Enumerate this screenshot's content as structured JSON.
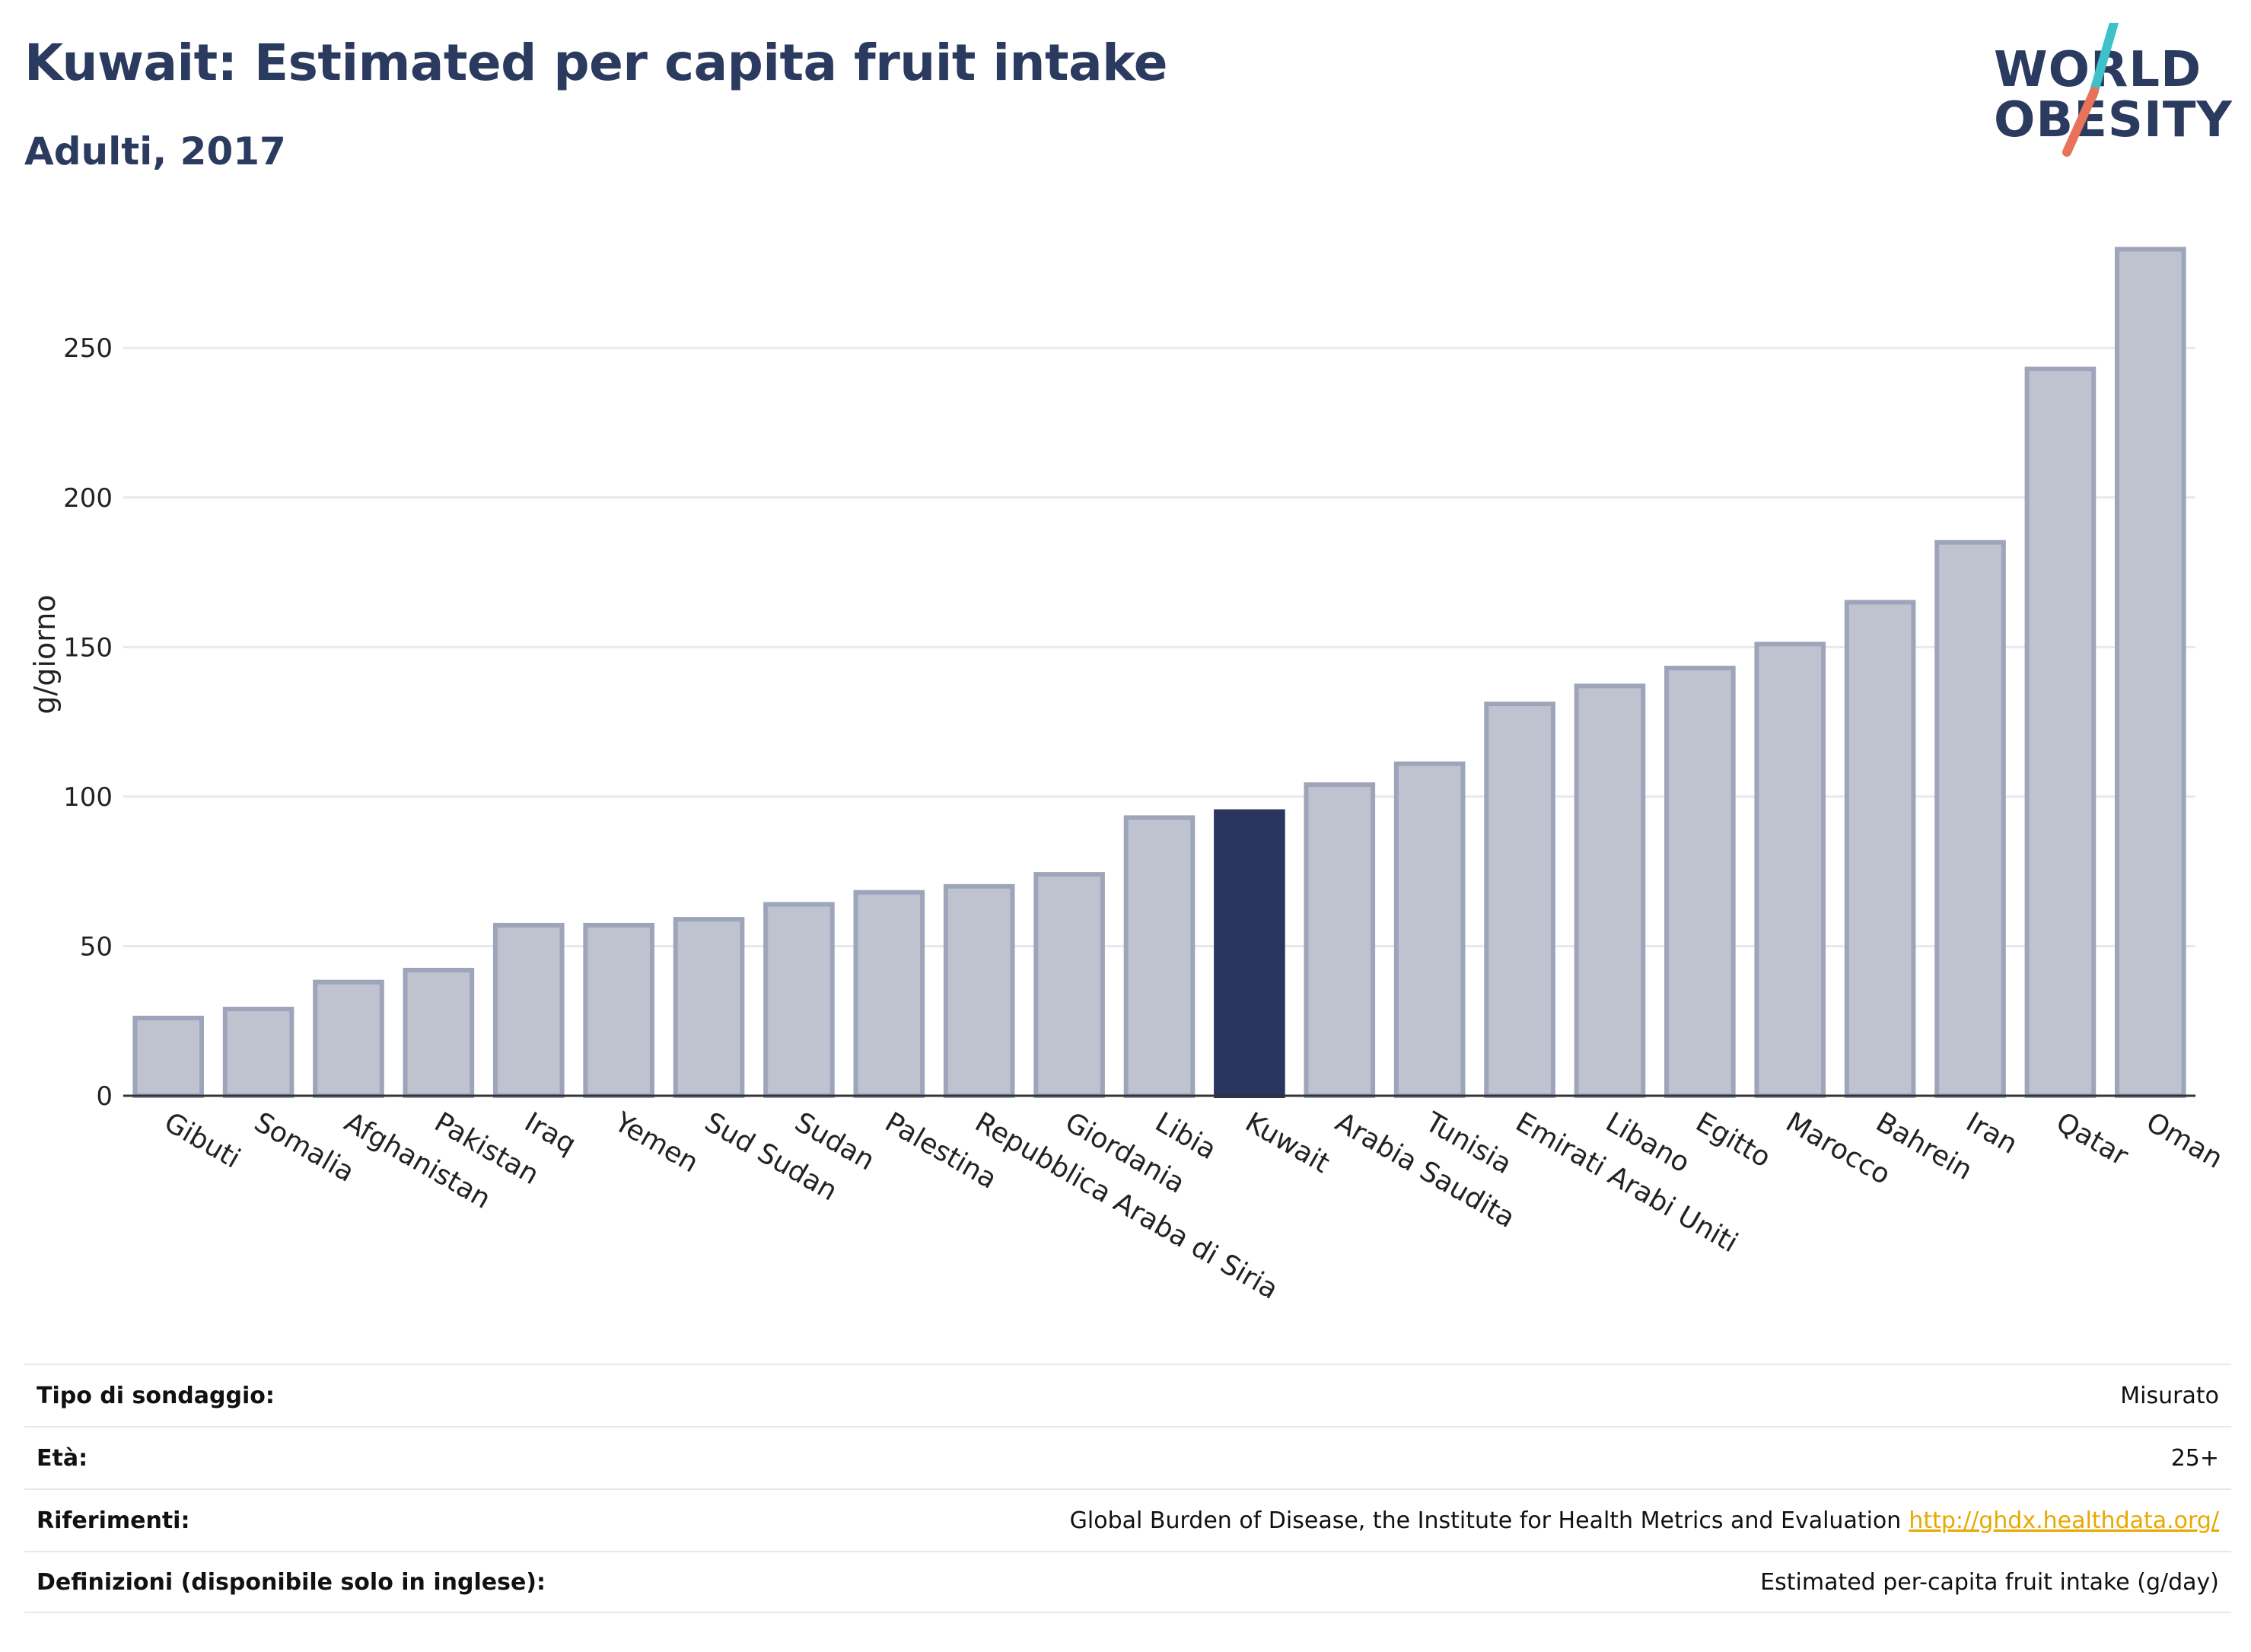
{
  "header": {
    "title": "Kuwait: Estimated per capita fruit intake",
    "subtitle": "Adulti, 2017"
  },
  "logo": {
    "line1": "WORLD",
    "line2": "OBESITY",
    "slash_colors": [
      "#3fc1c9",
      "#e8735a"
    ]
  },
  "colors": {
    "bar": "#bfc3d0",
    "bar_border": "#9ea4ba",
    "highlight": "#2b365f",
    "grid": "#e8e8ee",
    "axis": "#333333"
  },
  "chart_data": {
    "type": "bar",
    "ylabel": "g/giorno",
    "ylim": [
      0,
      290
    ],
    "yticks": [
      0,
      50,
      100,
      150,
      200,
      250
    ],
    "highlight": "Kuwait",
    "categories": [
      "Gibuti",
      "Somalia",
      "Afghanistan",
      "Pakistan",
      "Iraq",
      "Yemen",
      "Sud Sudan",
      "Sudan",
      "Palestina",
      "Repubblica Araba di Siria",
      "Giordania",
      "Libia",
      "Kuwait",
      "Arabia Saudita",
      "Tunisia",
      "Emirati Arabi Uniti",
      "Libano",
      "Egitto",
      "Marocco",
      "Bahrein",
      "Iran",
      "Qatar",
      "Oman"
    ],
    "values": [
      26,
      29,
      38,
      42,
      57,
      57,
      59,
      64,
      68,
      70,
      74,
      93,
      95,
      104,
      111,
      131,
      137,
      143,
      151,
      165,
      185,
      243,
      283
    ]
  },
  "meta": [
    {
      "label": "Tipo di sondaggio:",
      "value": "Misurato"
    },
    {
      "label": "Età:",
      "value": "25+"
    },
    {
      "label": "Riferimenti:",
      "value": "Global Burden of Disease, the Institute for Health Metrics and Evaluation",
      "link": "http://ghdx.healthdata.org/"
    },
    {
      "label": "Definizioni (disponibile solo in inglese):",
      "value": "Estimated per-capita fruit intake (g/day)"
    }
  ]
}
